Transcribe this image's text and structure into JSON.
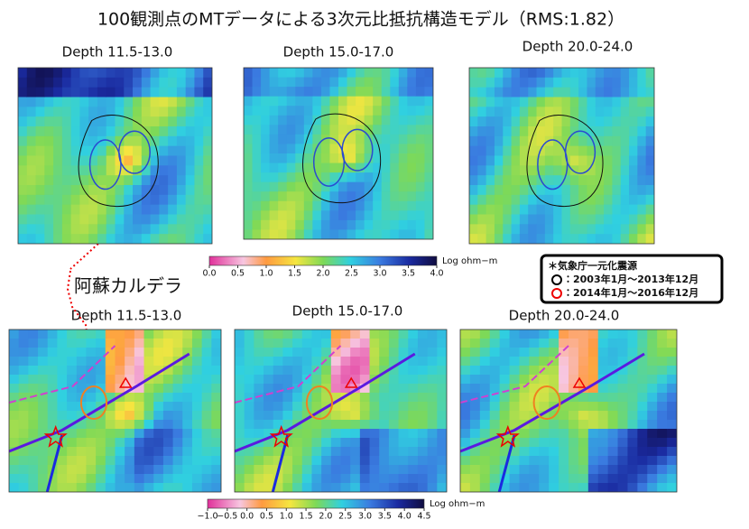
{
  "title": "100観測点のMTデータによる3次元比抵抗構造モデル（RMS:1.82）",
  "top_row": {
    "panels": [
      {
        "label": "Depth 11.5-13.0"
      },
      {
        "label": "Depth 15.0-17.0"
      },
      {
        "label": "Depth 20.0-24.0"
      }
    ],
    "colorbar": {
      "ticks": [
        {
          "value": 0,
          "label": "0.0"
        },
        {
          "value": 0.5,
          "label": "0.5"
        },
        {
          "value": 1,
          "label": "1.0"
        },
        {
          "value": 1.5,
          "label": "1.5"
        },
        {
          "value": 2,
          "label": "2.0"
        },
        {
          "value": 2.5,
          "label": "2.5"
        },
        {
          "value": 3,
          "label": "3.0"
        },
        {
          "value": 3.5,
          "label": "3.5"
        },
        {
          "value": 4,
          "label": "4.0"
        }
      ],
      "unit": "Log ohm−m"
    }
  },
  "legend": {
    "title": "＊気象庁一元化震源",
    "items": [
      "：2003年1月～2013年12月",
      "：2014年1月～2016年12月"
    ]
  },
  "annotation": "阿蘇カルデラ",
  "bottom_row": {
    "panels": [
      {
        "label": "Depth 11.5-13.0"
      },
      {
        "label": "Depth 15.0-17.0"
      },
      {
        "label": "Depth 20.0-24.0"
      }
    ],
    "colorbar": {
      "ticks": [
        {
          "value": -1,
          "label": "−1.0"
        },
        {
          "value": -0.5,
          "label": "−0.5"
        },
        {
          "value": 0,
          "label": "0.0"
        },
        {
          "value": 0.5,
          "label": "0.5"
        },
        {
          "value": 1,
          "label": "1.0"
        },
        {
          "value": 1.5,
          "label": "1.5"
        },
        {
          "value": 2,
          "label": "2.0"
        },
        {
          "value": 2.5,
          "label": "2.5"
        },
        {
          "value": 3,
          "label": "3.0"
        },
        {
          "value": 3.5,
          "label": "3.5"
        },
        {
          "value": 4,
          "label": "4.0"
        },
        {
          "value": 4.5,
          "label": "4.5"
        }
      ],
      "unit": "Log ohm−m"
    }
  }
}
